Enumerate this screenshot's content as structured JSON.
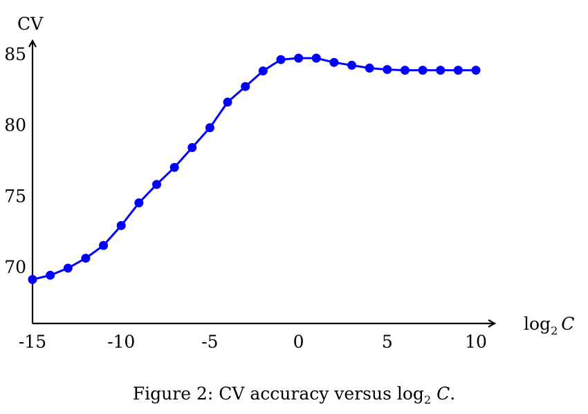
{
  "chart_data": {
    "type": "line",
    "ylabel": "CV",
    "xlabel": {
      "base": "log",
      "subscript": "2",
      "variable": "C"
    },
    "x_ticks": [
      -15,
      -10,
      -5,
      0,
      5,
      10
    ],
    "y_ticks": [
      70,
      75,
      80,
      85
    ],
    "xlim": [
      -15,
      10
    ],
    "ylim": [
      66,
      85
    ],
    "grid": false,
    "color": "#0000ff",
    "series": [
      {
        "x": [
          -15,
          -14,
          -13,
          -12,
          -11,
          -10,
          -9,
          -8,
          -7,
          -6,
          -5,
          -4,
          -3,
          -2,
          -1,
          0,
          1,
          2,
          3,
          4,
          5,
          6,
          7,
          8,
          9,
          10
        ],
        "y": [
          69.1,
          69.4,
          69.9,
          70.6,
          71.5,
          72.9,
          74.5,
          75.8,
          77.0,
          78.4,
          79.8,
          81.6,
          82.7,
          83.8,
          84.6,
          84.7,
          84.7,
          84.4,
          84.2,
          84.0,
          83.9,
          83.85,
          83.85,
          83.85,
          83.85,
          83.85
        ]
      }
    ]
  },
  "caption": {
    "prefix": "Figure 2: CV accuracy versus log",
    "subscript": "2",
    "variable": "C",
    "suffix": "."
  }
}
